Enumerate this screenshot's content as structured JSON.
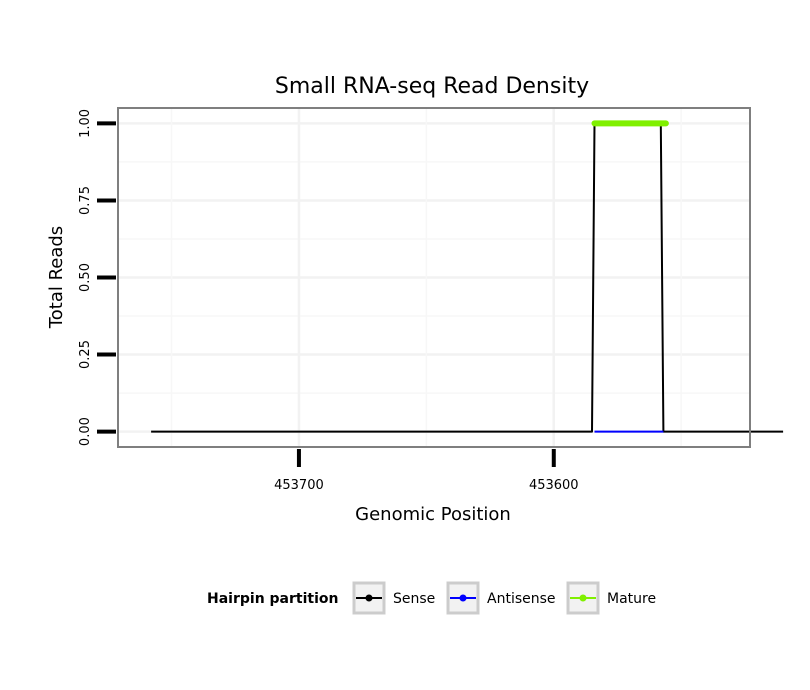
{
  "chart_data": {
    "type": "line",
    "title": "Small RNA-seq Read Density",
    "xlabel": "Genomic Position",
    "ylabel": "Total Reads",
    "x_reversed": true,
    "xlim": [
      453771,
      453523
    ],
    "ylim": [
      -0.05,
      1.05
    ],
    "x_ticks": [
      453700,
      453600
    ],
    "x_tick_labels": [
      "453700",
      "453600"
    ],
    "y_ticks": [
      0,
      0.25,
      0.5,
      0.75,
      1.0
    ],
    "y_tick_labels": [
      "0.00",
      "0.25",
      "0.50",
      "0.75",
      "1.00"
    ],
    "grid": true,
    "legend": {
      "title": "Hairpin partition",
      "position": "bottom",
      "entries": [
        "Sense",
        "Antisense",
        "Mature"
      ]
    },
    "series": [
      {
        "name": "Sense",
        "color": "#000000",
        "x": [
          453758,
          453585,
          453584,
          453558,
          453557,
          453510
        ],
        "y": [
          0,
          0,
          1,
          1,
          0,
          0
        ]
      },
      {
        "name": "Antisense",
        "color": "#0000ff",
        "x": [
          453584,
          453557
        ],
        "y": [
          0,
          0
        ]
      },
      {
        "name": "Mature",
        "color": "#80f000",
        "x": [
          453584,
          453556
        ],
        "y": [
          1,
          1
        ]
      }
    ]
  }
}
